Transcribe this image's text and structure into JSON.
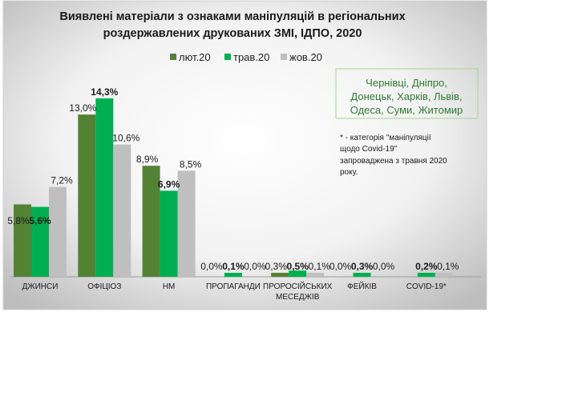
{
  "chart_data": {
    "type": "bar",
    "title_lines": [
      "Виявлені матеріали з ознаками маніпуляцій в регіональних",
      "роздержавлених друкованих ЗМІ, ІДПО, 2020"
    ],
    "legend_position": "top",
    "ylim": [
      0,
      15
    ],
    "grid": false,
    "categories": [
      "ДЖИНСИ",
      "ОФІЦІОЗ",
      "НМ",
      "ПРОПАГАНДИ",
      "ПРОРОСІЙСЬКИХ МЕСЕДЖІВ",
      "ФЕЙКІВ",
      "COVID-19*"
    ],
    "category_lines": [
      [
        "ДЖИНСИ"
      ],
      [
        "ОФІЦІОЗ"
      ],
      [
        "НМ"
      ],
      [
        "ПРОПАГАНДИ"
      ],
      [
        "ПРОРОСІЙСЬКИХ",
        "МЕСЕДЖІВ"
      ],
      [
        "ФЕЙКІВ"
      ],
      [
        "COVID-19*"
      ]
    ],
    "series": [
      {
        "name": "лют.20",
        "color": "#548235",
        "values": [
          5.8,
          13.0,
          8.9,
          0.0,
          0.3,
          0.0,
          null
        ],
        "labels": [
          "5,8%",
          "13,0%",
          "8,9%",
          "0,0%",
          "0,3%",
          "0,0%",
          ""
        ]
      },
      {
        "name": "трав.20",
        "color": "#00b050",
        "values": [
          5.6,
          14.3,
          6.9,
          0.1,
          0.5,
          0.3,
          0.2
        ],
        "labels": [
          "5,6%",
          "14,3%",
          "6,9%",
          "0,1%",
          "0,5%",
          "0,3%",
          "0,2%"
        ]
      },
      {
        "name": "жов.20",
        "color": "#bfbfbf",
        "values": [
          7.2,
          10.6,
          8.5,
          0.0,
          0.1,
          0.0,
          0.1
        ],
        "labels": [
          "7,2%",
          "10,6%",
          "8,5%",
          "0,0%",
          "0,1%",
          "0,0%",
          "0,1%"
        ]
      }
    ],
    "annotations": {
      "regions_lines": [
        "Чернівці, Дніпро,",
        "Донецьк, Харків, Львів,",
        "Одеса, Суми, Житомир"
      ],
      "note_lines": [
        "* - категорія \"маніпуляції",
        "щодо Covid-19\"",
        "запроваджена з травня 2020",
        "року."
      ]
    }
  }
}
